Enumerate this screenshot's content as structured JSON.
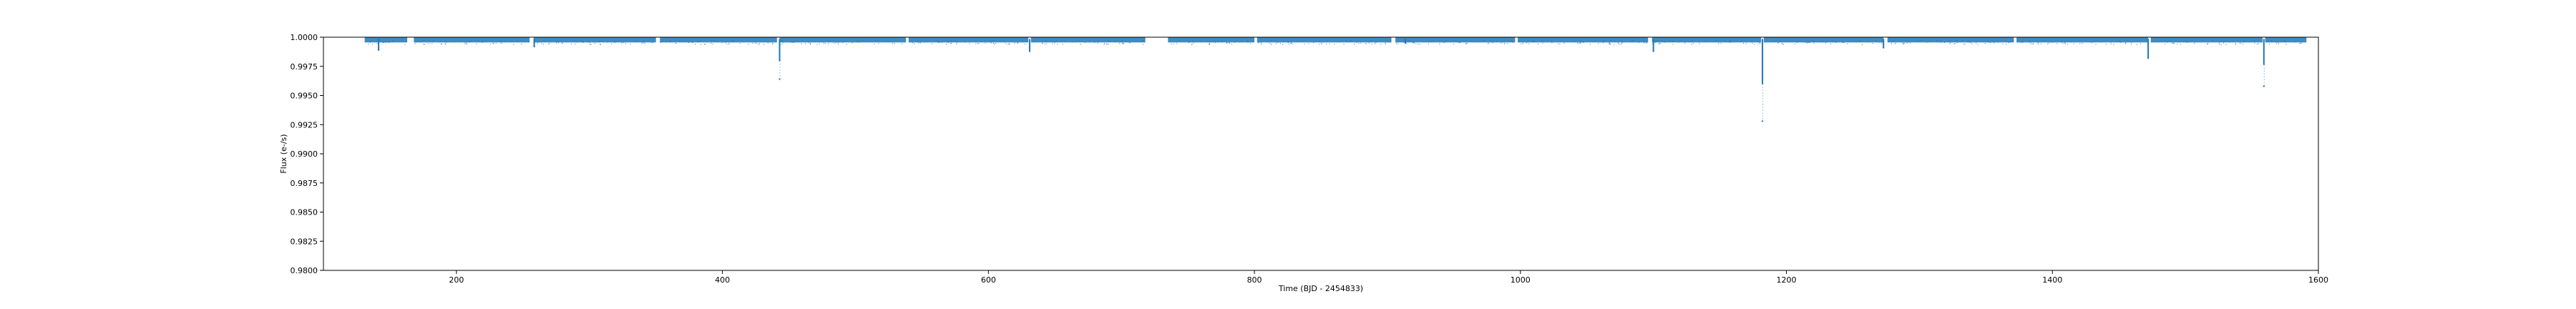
{
  "chart_data": {
    "type": "scatter",
    "title": "",
    "xlabel": "Time (BJD - 2454833)",
    "ylabel": "Flux (e-/s)",
    "xlim": [
      100,
      1600
    ],
    "ylim": [
      0.98,
      1.0
    ],
    "x_ticks": [
      200,
      400,
      600,
      800,
      1000,
      1200,
      1400,
      1600
    ],
    "x_tick_labels": [
      "200",
      "400",
      "600",
      "800",
      "1000",
      "1200",
      "1400",
      "1600"
    ],
    "y_ticks": [
      0.98,
      0.9825,
      0.985,
      0.9875,
      0.99,
      0.9925,
      0.995,
      0.9975,
      1.0
    ],
    "y_tick_labels": [
      "0.9800",
      "0.9825",
      "0.9850",
      "0.9875",
      "0.9900",
      "0.9925",
      "0.9950",
      "0.9975",
      "1.0000"
    ],
    "grid": false,
    "legend": false,
    "series_color": "#1f77b4",
    "baseline_flux": 0.99985,
    "observing_windows": [
      [
        131,
        163
      ],
      [
        168,
        255
      ],
      [
        258,
        350
      ],
      [
        353,
        441
      ],
      [
        443,
        538
      ],
      [
        540,
        630
      ],
      [
        632,
        718
      ],
      [
        735,
        800
      ],
      [
        802,
        903
      ],
      [
        906,
        996
      ],
      [
        998,
        1096
      ],
      [
        1099,
        1181
      ],
      [
        1183,
        1273
      ],
      [
        1276,
        1371
      ],
      [
        1373,
        1472
      ],
      [
        1474,
        1558
      ],
      [
        1560,
        1591
      ]
    ],
    "transits": [
      {
        "time": 141.5,
        "min_flux": 0.9989
      },
      {
        "time": 258.5,
        "min_flux": 0.9992
      },
      {
        "time": 443.0,
        "min_flux": 0.9964
      },
      {
        "time": 631.0,
        "min_flux": 0.9988
      },
      {
        "time": 913.5,
        "min_flux": 0.9995
      },
      {
        "time": 1100.0,
        "min_flux": 0.9988
      },
      {
        "time": 1182.0,
        "min_flux": 0.9928
      },
      {
        "time": 1273.0,
        "min_flux": 0.9991
      },
      {
        "time": 1472.0,
        "min_flux": 0.9982
      },
      {
        "time": 1559.0,
        "min_flux": 0.9958
      }
    ]
  }
}
